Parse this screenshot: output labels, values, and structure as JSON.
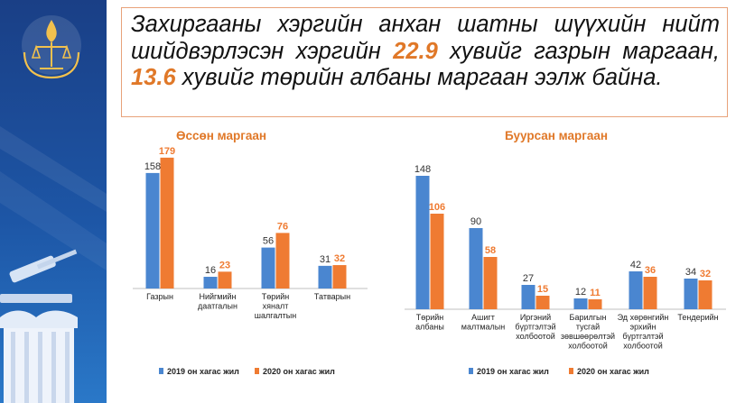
{
  "headline": {
    "part1": "Захиргааны хэргийн анхан шатны шүүхийн нийт шийдвэрлэсэн хэргийн ",
    "value1": "22.9",
    "part2": " хувийг газрын маргаан, ",
    "value2": "13.6",
    "part3": " хувийг төрийн албаны маргаан ээлж байна."
  },
  "colors": {
    "series2019": "#4a86d0",
    "series2020": "#ef7b32",
    "title": "#e07828",
    "sidebar": "#1d56a6"
  },
  "chart_data": [
    {
      "type": "bar",
      "title": "Өссөн маргаан",
      "categories": [
        [
          "Газрын"
        ],
        [
          "Нийгмийн",
          "даатгалын"
        ],
        [
          "Төрийн",
          "хяналт",
          "шалгалтын"
        ],
        [
          "Татварын"
        ]
      ],
      "series": [
        {
          "name": "2019 он хагас жил",
          "values": [
            158,
            16,
            56,
            31
          ]
        },
        {
          "name": "2020 он хагас жил",
          "values": [
            179,
            23,
            76,
            32
          ]
        }
      ],
      "ylim": [
        0,
        185
      ],
      "grid": false,
      "legend": "bottom"
    },
    {
      "type": "bar",
      "title": "Буурсан маргаан",
      "categories": [
        [
          "Төрийн",
          "албаны"
        ],
        [
          "Ашигт",
          "малтмалын"
        ],
        [
          "Иргэний",
          "бүртгэлтэй",
          "холбоотой"
        ],
        [
          "Барилгын",
          "тусгай",
          "зөвшөөрөлтэй",
          "холбоотой"
        ],
        [
          "Эд хөрөнгийн",
          "эрхийн",
          "бүртгэлтэй",
          "холбоотой"
        ],
        [
          "Тендерийн"
        ]
      ],
      "series": [
        {
          "name": "2019 он хагас жил",
          "values": [
            148,
            90,
            27,
            12,
            42,
            34
          ]
        },
        {
          "name": "2020 он хагас жил",
          "values": [
            106,
            58,
            15,
            11,
            36,
            32
          ]
        }
      ],
      "ylim": [
        0,
        155
      ],
      "grid": false,
      "legend": "bottom"
    }
  ]
}
